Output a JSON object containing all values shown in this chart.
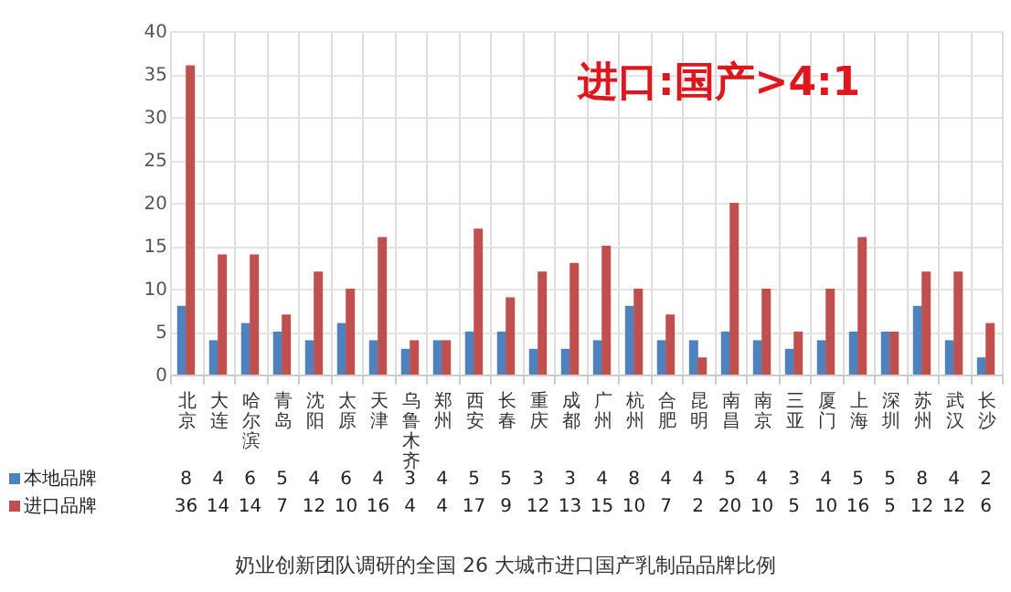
{
  "chart_data": {
    "type": "bar",
    "categories": [
      "北京",
      "大连",
      "哈尔滨",
      "青岛",
      "沈阳",
      "太原",
      "天津",
      "乌鲁木齐",
      "郑州",
      "西安",
      "长春",
      "重庆",
      "成都",
      "广州",
      "杭州",
      "合肥",
      "昆明",
      "南昌",
      "南京",
      "三亚",
      "厦门",
      "上海",
      "深圳",
      "苏州",
      "武汉",
      "长沙"
    ],
    "series": [
      {
        "name": "本地品牌",
        "color": "#4f81bd",
        "values": [
          8,
          4,
          6,
          5,
          4,
          6,
          4,
          3,
          4,
          5,
          5,
          3,
          3,
          4,
          8,
          4,
          4,
          5,
          4,
          3,
          4,
          5,
          5,
          8,
          4,
          2
        ]
      },
      {
        "name": "进口品牌",
        "color": "#c0504d",
        "values": [
          36,
          14,
          14,
          7,
          12,
          10,
          16,
          4,
          4,
          17,
          9,
          12,
          13,
          15,
          10,
          7,
          2,
          20,
          10,
          5,
          10,
          16,
          5,
          12,
          12,
          6
        ]
      }
    ],
    "ylim": [
      0,
      40
    ],
    "yticks": [
      0,
      5,
      10,
      15,
      20,
      25,
      30,
      35,
      40
    ],
    "grid": "y",
    "legend": "bottom",
    "data_labels": true,
    "annotations": [
      "进口:国产>4:1",
      "奶业创新团队调研的全国 26 大城市进口国产乳制品品牌比例"
    ]
  }
}
